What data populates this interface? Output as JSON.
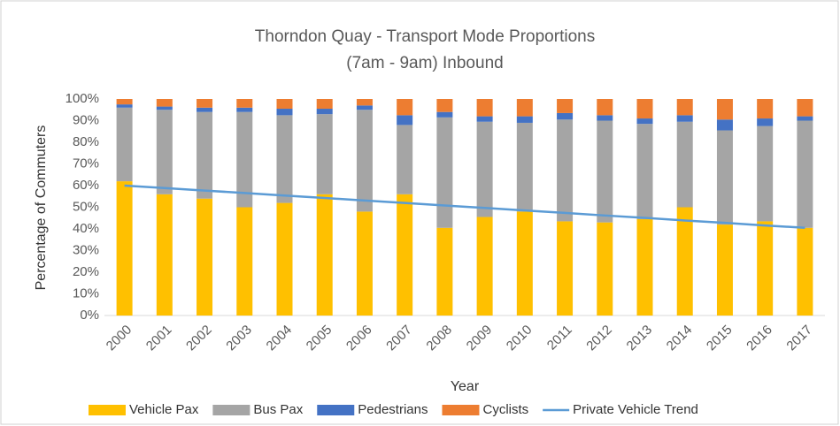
{
  "chart_data": {
    "type": "bar",
    "stacked": true,
    "title": "Thorndon Quay - Transport Mode Proportions",
    "subtitle": "(7am - 9am) Inbound",
    "x_label": "Year",
    "y_label": "Percentage of Commuters",
    "categories": [
      "2000",
      "2001",
      "2002",
      "2003",
      "2004",
      "2005",
      "2006",
      "2007",
      "2008",
      "2009",
      "2010",
      "2011",
      "2012",
      "2013",
      "2014",
      "2015",
      "2016",
      "2017"
    ],
    "series": [
      {
        "name": "Vehicle Pax",
        "color": "#FFC000",
        "values": [
          62,
          56,
          54,
          50,
          52,
          56,
          48,
          56,
          40.5,
          45.5,
          48,
          43.5,
          43,
          44.5,
          50,
          42,
          43.5,
          40.5
        ]
      },
      {
        "name": "Bus Pax",
        "color": "#A5A5A5",
        "values": [
          34,
          39,
          40,
          44,
          40.5,
          37,
          47,
          32,
          51,
          44,
          41,
          47,
          47,
          44,
          39.5,
          43.5,
          44,
          49.5
        ]
      },
      {
        "name": "Pedestrians",
        "color": "#4472C4",
        "values": [
          1.5,
          1.5,
          2,
          2,
          3,
          2.5,
          2,
          4.5,
          2.5,
          2.5,
          3,
          3,
          2.5,
          2.5,
          3,
          5,
          3.5,
          2
        ]
      },
      {
        "name": "Cyclists",
        "color": "#ED7D31",
        "values": [
          2.5,
          3.5,
          4,
          4,
          4.5,
          4.5,
          3,
          7.5,
          6,
          8,
          8,
          6.5,
          7.5,
          9,
          7.5,
          9.5,
          9,
          8
        ]
      },
      {
        "name": "Private Vehicle Trend",
        "color": "#5B9BD5",
        "type": "line",
        "values": [
          60,
          58.9,
          57.7,
          56.6,
          55.4,
          54.3,
          53.1,
          52.0,
          50.8,
          49.7,
          48.5,
          47.4,
          46.2,
          45.1,
          43.9,
          42.8,
          41.6,
          40.5
        ]
      }
    ],
    "ylim": [
      0,
      100
    ],
    "yticks": [
      {
        "value": 0,
        "label": "0%"
      },
      {
        "value": 10,
        "label": "10%"
      },
      {
        "value": 20,
        "label": "20%"
      },
      {
        "value": 30,
        "label": "30%"
      },
      {
        "value": 40,
        "label": "40%"
      },
      {
        "value": 50,
        "label": "50%"
      },
      {
        "value": 60,
        "label": "60%"
      },
      {
        "value": 70,
        "label": "70%"
      },
      {
        "value": 80,
        "label": "80%"
      },
      {
        "value": 90,
        "label": "90%"
      },
      {
        "value": 100,
        "label": "100%"
      }
    ],
    "grid": false,
    "legend": "bottom"
  }
}
